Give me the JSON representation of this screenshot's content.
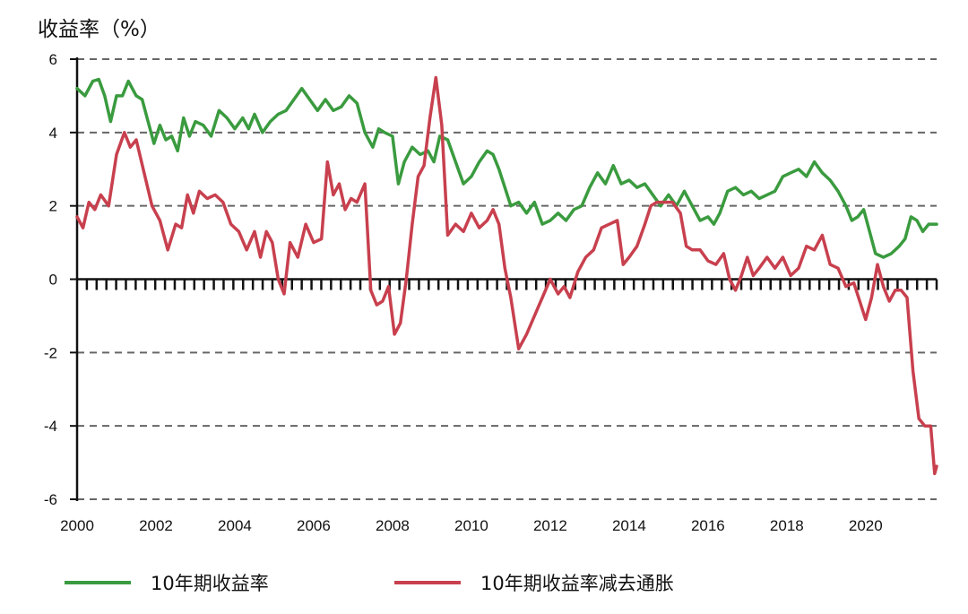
{
  "chart_data": {
    "type": "line",
    "ylabel": "收益率（%）",
    "xlim": [
      2000,
      2021.8
    ],
    "ylim": [
      -6,
      6
    ],
    "yticks": [
      6,
      4,
      2,
      0,
      -2,
      -4,
      -6
    ],
    "ytick_labels": [
      "6",
      "4",
      "2",
      "0",
      "-2",
      "-4",
      "-6"
    ],
    "xticks": [
      2000,
      2002,
      2004,
      2006,
      2008,
      2010,
      2012,
      2014,
      2016,
      2018,
      2020
    ],
    "xtick_labels": [
      "2000",
      "2002",
      "2004",
      "2006",
      "2008",
      "2010",
      "2012",
      "2014",
      "2016",
      "2018",
      "2020"
    ],
    "grid": "horizontal-dashed",
    "legend_position": "bottom",
    "series": [
      {
        "name": "10年期收益率",
        "color": "#3a9b3f",
        "points": [
          [
            2000.0,
            5.2
          ],
          [
            2000.2,
            5.0
          ],
          [
            2000.4,
            5.4
          ],
          [
            2000.55,
            5.45
          ],
          [
            2000.7,
            5.0
          ],
          [
            2000.85,
            4.3
          ],
          [
            2001.0,
            5.0
          ],
          [
            2001.15,
            5.0
          ],
          [
            2001.3,
            5.4
          ],
          [
            2001.5,
            5.0
          ],
          [
            2001.65,
            4.9
          ],
          [
            2001.8,
            4.3
          ],
          [
            2001.95,
            3.7
          ],
          [
            2002.1,
            4.2
          ],
          [
            2002.25,
            3.8
          ],
          [
            2002.4,
            3.9
          ],
          [
            2002.55,
            3.5
          ],
          [
            2002.7,
            4.4
          ],
          [
            2002.85,
            3.9
          ],
          [
            2003.0,
            4.3
          ],
          [
            2003.2,
            4.2
          ],
          [
            2003.4,
            3.9
          ],
          [
            2003.6,
            4.6
          ],
          [
            2003.8,
            4.4
          ],
          [
            2004.0,
            4.1
          ],
          [
            2004.2,
            4.4
          ],
          [
            2004.35,
            4.1
          ],
          [
            2004.5,
            4.5
          ],
          [
            2004.7,
            4.0
          ],
          [
            2004.9,
            4.3
          ],
          [
            2005.1,
            4.5
          ],
          [
            2005.3,
            4.6
          ],
          [
            2005.5,
            4.9
          ],
          [
            2005.7,
            5.2
          ],
          [
            2005.9,
            4.9
          ],
          [
            2006.1,
            4.6
          ],
          [
            2006.3,
            4.9
          ],
          [
            2006.5,
            4.6
          ],
          [
            2006.7,
            4.7
          ],
          [
            2006.9,
            5.0
          ],
          [
            2007.1,
            4.8
          ],
          [
            2007.3,
            4.0
          ],
          [
            2007.5,
            3.6
          ],
          [
            2007.65,
            4.1
          ],
          [
            2007.8,
            4.0
          ],
          [
            2008.0,
            3.9
          ],
          [
            2008.15,
            2.6
          ],
          [
            2008.3,
            3.2
          ],
          [
            2008.5,
            3.6
          ],
          [
            2008.7,
            3.4
          ],
          [
            2008.9,
            3.5
          ],
          [
            2009.05,
            3.2
          ],
          [
            2009.2,
            3.9
          ],
          [
            2009.4,
            3.8
          ],
          [
            2009.6,
            3.2
          ],
          [
            2009.8,
            2.6
          ],
          [
            2010.0,
            2.8
          ],
          [
            2010.2,
            3.2
          ],
          [
            2010.4,
            3.5
          ],
          [
            2010.55,
            3.4
          ],
          [
            2010.7,
            3.0
          ],
          [
            2010.85,
            2.5
          ],
          [
            2011.0,
            2.0
          ],
          [
            2011.2,
            2.1
          ],
          [
            2011.4,
            1.8
          ],
          [
            2011.6,
            2.1
          ],
          [
            2011.8,
            1.5
          ],
          [
            2012.0,
            1.6
          ],
          [
            2012.2,
            1.8
          ],
          [
            2012.4,
            1.6
          ],
          [
            2012.6,
            1.9
          ],
          [
            2012.8,
            2.0
          ],
          [
            2013.0,
            2.5
          ],
          [
            2013.2,
            2.9
          ],
          [
            2013.4,
            2.6
          ],
          [
            2013.6,
            3.1
          ],
          [
            2013.8,
            2.6
          ],
          [
            2014.0,
            2.7
          ],
          [
            2014.2,
            2.5
          ],
          [
            2014.4,
            2.6
          ],
          [
            2014.6,
            2.3
          ],
          [
            2014.8,
            2.0
          ],
          [
            2015.0,
            2.3
          ],
          [
            2015.2,
            2.0
          ],
          [
            2015.4,
            2.4
          ],
          [
            2015.6,
            2.0
          ],
          [
            2015.8,
            1.6
          ],
          [
            2016.0,
            1.7
          ],
          [
            2016.15,
            1.5
          ],
          [
            2016.3,
            1.8
          ],
          [
            2016.5,
            2.4
          ],
          [
            2016.7,
            2.5
          ],
          [
            2016.9,
            2.3
          ],
          [
            2017.1,
            2.4
          ],
          [
            2017.3,
            2.2
          ],
          [
            2017.5,
            2.3
          ],
          [
            2017.7,
            2.4
          ],
          [
            2017.9,
            2.8
          ],
          [
            2018.1,
            2.9
          ],
          [
            2018.3,
            3.0
          ],
          [
            2018.5,
            2.8
          ],
          [
            2018.7,
            3.2
          ],
          [
            2018.9,
            2.9
          ],
          [
            2019.1,
            2.7
          ],
          [
            2019.3,
            2.4
          ],
          [
            2019.5,
            2.0
          ],
          [
            2019.65,
            1.6
          ],
          [
            2019.8,
            1.7
          ],
          [
            2019.95,
            1.9
          ],
          [
            2020.1,
            1.3
          ],
          [
            2020.25,
            0.7
          ],
          [
            2020.45,
            0.6
          ],
          [
            2020.65,
            0.7
          ],
          [
            2020.85,
            0.9
          ],
          [
            2021.0,
            1.1
          ],
          [
            2021.15,
            1.7
          ],
          [
            2021.3,
            1.6
          ],
          [
            2021.45,
            1.3
          ],
          [
            2021.6,
            1.5
          ],
          [
            2021.8,
            1.5
          ]
        ]
      },
      {
        "name": "10年期收益率减去通胀",
        "color": "#c8404e",
        "points": [
          [
            2000.0,
            1.7
          ],
          [
            2000.15,
            1.4
          ],
          [
            2000.3,
            2.1
          ],
          [
            2000.45,
            1.9
          ],
          [
            2000.6,
            2.3
          ],
          [
            2000.8,
            2.0
          ],
          [
            2001.0,
            3.4
          ],
          [
            2001.2,
            4.0
          ],
          [
            2001.35,
            3.6
          ],
          [
            2001.5,
            3.8
          ],
          [
            2001.7,
            2.9
          ],
          [
            2001.9,
            2.0
          ],
          [
            2002.1,
            1.6
          ],
          [
            2002.3,
            0.8
          ],
          [
            2002.5,
            1.5
          ],
          [
            2002.65,
            1.4
          ],
          [
            2002.8,
            2.3
          ],
          [
            2002.95,
            1.8
          ],
          [
            2003.1,
            2.4
          ],
          [
            2003.3,
            2.2
          ],
          [
            2003.5,
            2.3
          ],
          [
            2003.7,
            2.1
          ],
          [
            2003.9,
            1.5
          ],
          [
            2004.1,
            1.3
          ],
          [
            2004.3,
            0.8
          ],
          [
            2004.5,
            1.3
          ],
          [
            2004.65,
            0.6
          ],
          [
            2004.8,
            1.3
          ],
          [
            2004.95,
            1.0
          ],
          [
            2005.1,
            0.0
          ],
          [
            2005.25,
            -0.4
          ],
          [
            2005.4,
            1.0
          ],
          [
            2005.6,
            0.6
          ],
          [
            2005.8,
            1.5
          ],
          [
            2006.0,
            1.0
          ],
          [
            2006.2,
            1.1
          ],
          [
            2006.35,
            3.2
          ],
          [
            2006.5,
            2.3
          ],
          [
            2006.65,
            2.6
          ],
          [
            2006.8,
            1.9
          ],
          [
            2006.95,
            2.2
          ],
          [
            2007.1,
            2.1
          ],
          [
            2007.3,
            2.6
          ],
          [
            2007.45,
            -0.3
          ],
          [
            2007.6,
            -0.7
          ],
          [
            2007.75,
            -0.6
          ],
          [
            2007.9,
            -0.2
          ],
          [
            2008.05,
            -1.5
          ],
          [
            2008.2,
            -1.2
          ],
          [
            2008.35,
            0.0
          ],
          [
            2008.5,
            1.5
          ],
          [
            2008.65,
            2.8
          ],
          [
            2008.8,
            3.1
          ],
          [
            2008.95,
            4.4
          ],
          [
            2009.1,
            5.5
          ],
          [
            2009.25,
            4.2
          ],
          [
            2009.4,
            1.2
          ],
          [
            2009.6,
            1.5
          ],
          [
            2009.8,
            1.3
          ],
          [
            2010.0,
            1.8
          ],
          [
            2010.2,
            1.4
          ],
          [
            2010.4,
            1.6
          ],
          [
            2010.55,
            1.9
          ],
          [
            2010.7,
            1.5
          ],
          [
            2010.85,
            0.3
          ],
          [
            2011.0,
            -0.5
          ],
          [
            2011.2,
            -1.9
          ],
          [
            2011.4,
            -1.5
          ],
          [
            2011.6,
            -1.0
          ],
          [
            2011.8,
            -0.5
          ],
          [
            2012.0,
            0.0
          ],
          [
            2012.2,
            -0.4
          ],
          [
            2012.35,
            -0.2
          ],
          [
            2012.5,
            -0.5
          ],
          [
            2012.7,
            0.2
          ],
          [
            2012.9,
            0.6
          ],
          [
            2013.1,
            0.8
          ],
          [
            2013.3,
            1.4
          ],
          [
            2013.5,
            1.5
          ],
          [
            2013.7,
            1.6
          ],
          [
            2013.85,
            0.4
          ],
          [
            2014.0,
            0.6
          ],
          [
            2014.2,
            0.9
          ],
          [
            2014.4,
            1.5
          ],
          [
            2014.55,
            2.0
          ],
          [
            2014.7,
            2.1
          ],
          [
            2014.9,
            2.1
          ],
          [
            2015.1,
            2.1
          ],
          [
            2015.3,
            1.8
          ],
          [
            2015.45,
            0.9
          ],
          [
            2015.6,
            0.8
          ],
          [
            2015.8,
            0.8
          ],
          [
            2016.0,
            0.5
          ],
          [
            2016.2,
            0.4
          ],
          [
            2016.4,
            0.7
          ],
          [
            2016.55,
            0.0
          ],
          [
            2016.7,
            -0.3
          ],
          [
            2016.85,
            0.1
          ],
          [
            2017.0,
            0.6
          ],
          [
            2017.15,
            0.1
          ],
          [
            2017.3,
            0.3
          ],
          [
            2017.5,
            0.6
          ],
          [
            2017.7,
            0.3
          ],
          [
            2017.9,
            0.6
          ],
          [
            2018.1,
            0.1
          ],
          [
            2018.3,
            0.3
          ],
          [
            2018.5,
            0.9
          ],
          [
            2018.7,
            0.8
          ],
          [
            2018.9,
            1.2
          ],
          [
            2019.1,
            0.4
          ],
          [
            2019.3,
            0.3
          ],
          [
            2019.5,
            -0.2
          ],
          [
            2019.7,
            -0.1
          ],
          [
            2019.85,
            -0.6
          ],
          [
            2020.0,
            -1.1
          ],
          [
            2020.15,
            -0.5
          ],
          [
            2020.3,
            0.4
          ],
          [
            2020.45,
            -0.2
          ],
          [
            2020.6,
            -0.6
          ],
          [
            2020.75,
            -0.3
          ],
          [
            2020.9,
            -0.3
          ],
          [
            2021.05,
            -0.5
          ],
          [
            2021.2,
            -2.5
          ],
          [
            2021.35,
            -3.8
          ],
          [
            2021.5,
            -4.0
          ],
          [
            2021.65,
            -4.0
          ],
          [
            2021.75,
            -5.3
          ],
          [
            2021.8,
            -5.1
          ]
        ]
      }
    ]
  }
}
